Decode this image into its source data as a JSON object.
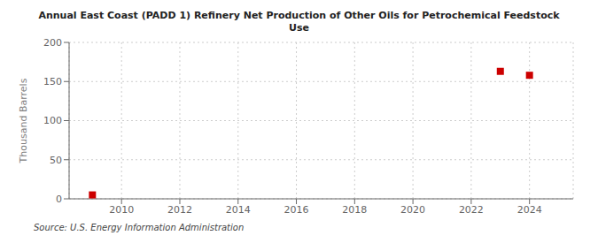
{
  "chart_data": {
    "type": "scatter",
    "title": "Annual East Coast (PADD 1) Refinery Net Production of Other Oils for Petrochemical Feedstock\nUse",
    "ylabel": "Thousand Barrels",
    "annotations": [
      "Source: U.S. Energy Information Administration"
    ],
    "x": [
      2009,
      2023,
      2024
    ],
    "values": [
      5,
      163,
      158
    ],
    "color": "#cc0000",
    "marker": "square",
    "xlim": [
      2008.2,
      2025.5
    ],
    "ylim": [
      0,
      200
    ],
    "xticks": [
      2010,
      2012,
      2014,
      2016,
      2018,
      2020,
      2022,
      2024
    ],
    "yticks": [
      0,
      50,
      100,
      150,
      200
    ],
    "grid": true
  }
}
